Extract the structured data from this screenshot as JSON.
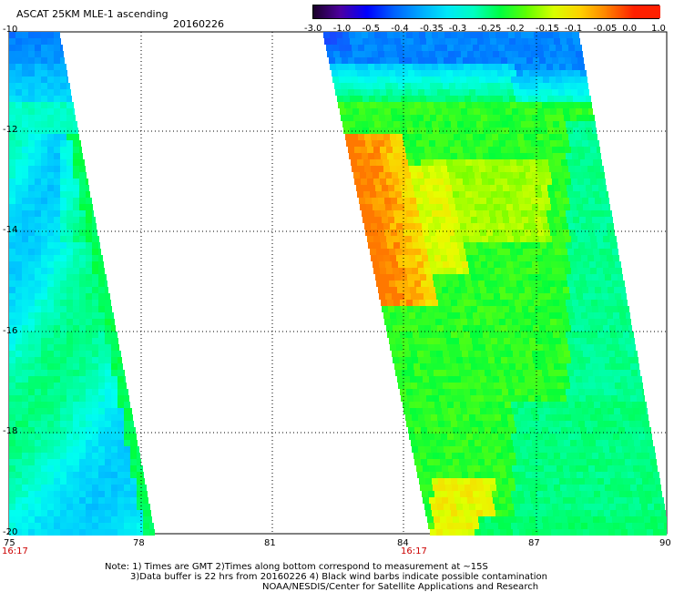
{
  "header": {
    "title": "ASCAT 25KM MLE-1 ascending",
    "date": "20160226"
  },
  "colorbar": {
    "labels": [
      "-3.0",
      "-1.0",
      "-0.5",
      "-0.4",
      "-0.35",
      "-0.3",
      "-0.25",
      "-0.2",
      "-0.15",
      "-0.1",
      "-0.05",
      "0.0",
      "1.0"
    ],
    "colors": [
      "#1a0028",
      "#4d00a0",
      "#0000ff",
      "#0060ff",
      "#00a8ff",
      "#00e8f8",
      "#00ffc0",
      "#00ff40",
      "#60ff00",
      "#d8ff00",
      "#ffd000",
      "#ff8000",
      "#ff2000"
    ]
  },
  "axes": {
    "x_ticks": [
      "75",
      "78",
      "81",
      "84",
      "87",
      "90"
    ],
    "y_ticks": [
      "10",
      "12",
      "14",
      "16",
      "18",
      "20"
    ]
  },
  "swath_times": [
    "16:17",
    "16:17"
  ],
  "notes": {
    "line1": "Note: 1) Times are GMT 2)Times along bottom correspond to measurement at ~15S",
    "line2": "3)Data buffer is 22 hrs from 20160226 4) Black wind barbs indicate possible contamination",
    "line3": "NOAA/NESDIS/Center for Satellite Applications and Research"
  }
}
